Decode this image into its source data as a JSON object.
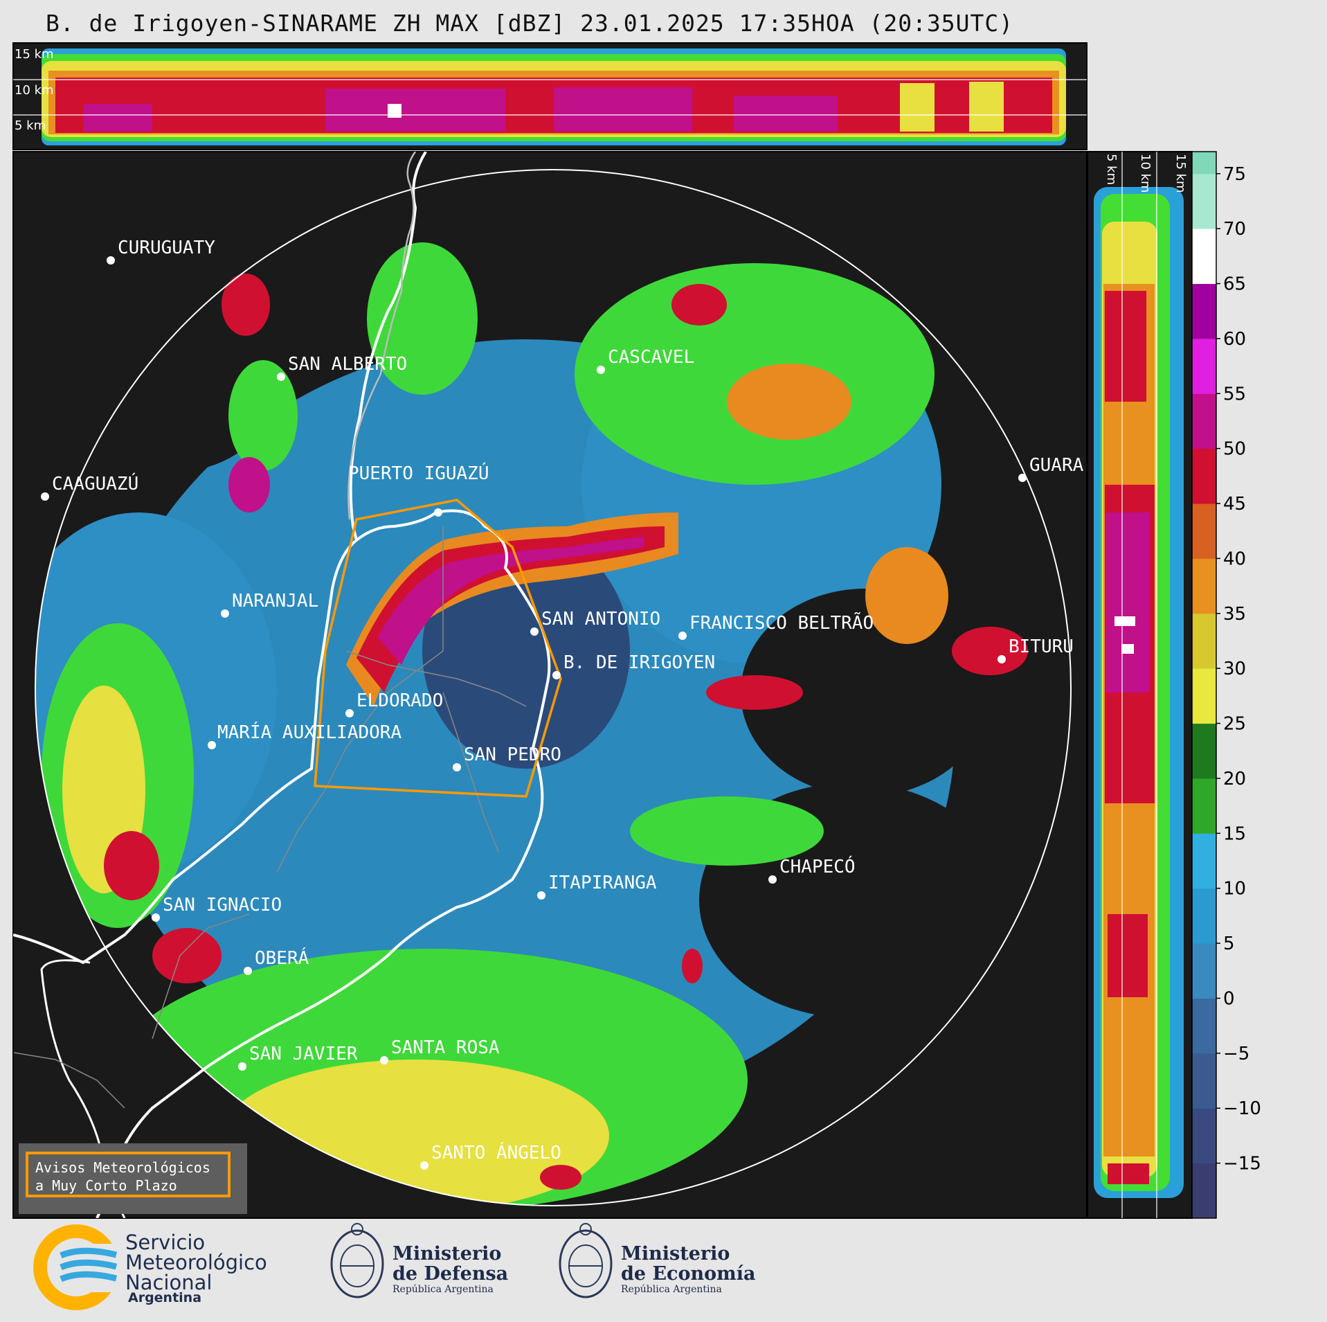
{
  "title": "B. de Irigoyen-SINARAME ZH MAX [dBZ] 23.01.2025 17:35HOA (20:35UTC)",
  "top_panel": {
    "height_labels": [
      "15 km",
      "10 km",
      "5 km"
    ]
  },
  "side_panel": {
    "height_labels": [
      "5 km",
      "10 km",
      "15 km"
    ]
  },
  "colorbar": {
    "ticks": [
      "75",
      "70",
      "65",
      "60",
      "55",
      "50",
      "45",
      "40",
      "35",
      "30",
      "25",
      "20",
      "15",
      "10",
      "5",
      "0",
      "−5",
      "−10",
      "−15"
    ],
    "range": [
      -20,
      77
    ]
  },
  "cities": [
    {
      "name": "CURUGUATY"
    },
    {
      "name": "SAN ALBERTO"
    },
    {
      "name": "CASCAVEL"
    },
    {
      "name": "CAAGUAZÚ"
    },
    {
      "name": "GUARA"
    },
    {
      "name": "PUERTO IGUAZÚ"
    },
    {
      "name": "NARANJAL"
    },
    {
      "name": "SAN ANTONIO"
    },
    {
      "name": "FRANCISCO BELTRÃO"
    },
    {
      "name": "BITURU"
    },
    {
      "name": "B. DE IRIGOYEN"
    },
    {
      "name": "ELDORADO"
    },
    {
      "name": "MARÍA AUXILIADORA"
    },
    {
      "name": "SAN PEDRO"
    },
    {
      "name": "CHAPECÓ"
    },
    {
      "name": "ITAPIRANGA"
    },
    {
      "name": "SAN IGNACIO"
    },
    {
      "name": "OBERÁ"
    },
    {
      "name": "SAN JAVIER"
    },
    {
      "name": "SANTA ROSA"
    },
    {
      "name": "SANTO ÁNGELO"
    }
  ],
  "alert_box": {
    "line1": "Avisos Meteorológicos",
    "line2": "a Muy Corto Plazo"
  },
  "logos": {
    "smn": {
      "line1": "Servicio",
      "line2": "Meteorológico",
      "line3": "Nacional",
      "line4": "Argentina"
    },
    "defensa": {
      "line1": "Ministerio",
      "line2": "de Defensa",
      "line3": "República Argentina"
    },
    "economia": {
      "line1": "Ministerio",
      "line2": "de Economía",
      "line3": "República Argentina"
    }
  },
  "colors": {
    "outline_white": "#ffffff",
    "warning_polygon": "#ff9900",
    "map_bg": "#1a1a1a",
    "page_bg": "#e6e6e6"
  }
}
